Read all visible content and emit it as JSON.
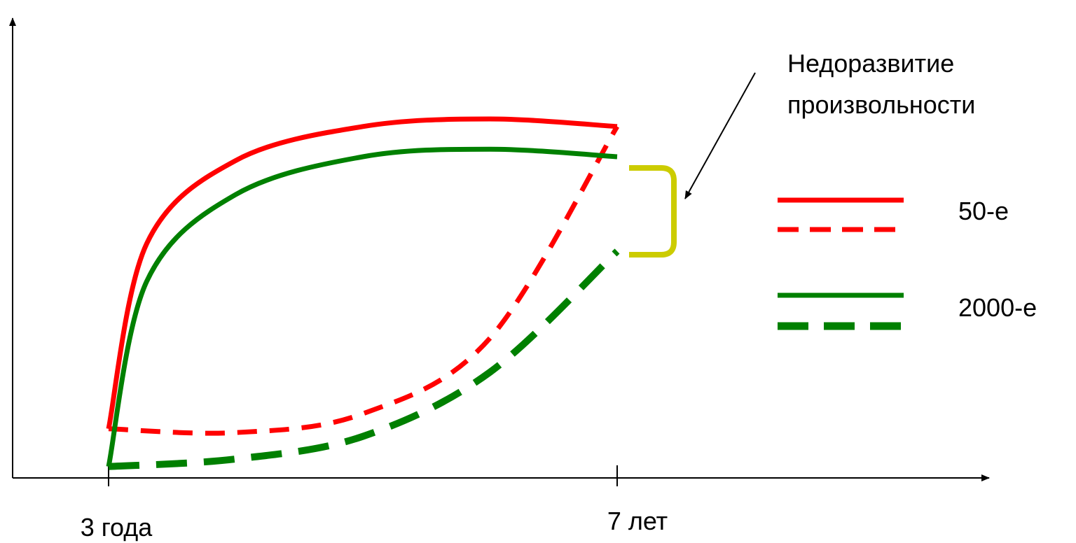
{
  "chart_data": {
    "type": "line",
    "title": "",
    "xlabel": "",
    "ylabel": "",
    "x_ticks": [
      "3 года",
      "7 лет"
    ],
    "grid": false,
    "legend": [
      {
        "label": "50-е",
        "color": "#ff0000",
        "styles": [
          "solid",
          "dashed"
        ]
      },
      {
        "label": "2000-е",
        "color": "#008000",
        "styles": [
          "solid",
          "dashed"
        ]
      }
    ],
    "series": [
      {
        "era": "50-е",
        "style": "solid",
        "color": "#ff0000",
        "x": [
          3,
          3.3,
          4,
          5,
          6,
          7
        ],
        "y": [
          0.13,
          0.62,
          0.84,
          0.93,
          0.95,
          0.93
        ]
      },
      {
        "era": "50-е",
        "style": "dashed",
        "color": "#ff0000",
        "x": [
          3,
          4,
          5,
          6,
          7
        ],
        "y": [
          0.13,
          0.12,
          0.17,
          0.37,
          0.93
        ]
      },
      {
        "era": "2000-е",
        "style": "solid",
        "color": "#008000",
        "x": [
          3,
          3.3,
          4,
          5,
          6,
          7
        ],
        "y": [
          0.03,
          0.52,
          0.75,
          0.85,
          0.87,
          0.85
        ]
      },
      {
        "era": "2000-е",
        "style": "dashed",
        "color": "#008000",
        "x": [
          3,
          4,
          5,
          6,
          7
        ],
        "y": [
          0.03,
          0.05,
          0.11,
          0.28,
          0.6
        ]
      }
    ],
    "annotation": {
      "lines": [
        "Недоразвитие",
        "произвольности"
      ],
      "bracket_color": "#cccc00"
    }
  }
}
